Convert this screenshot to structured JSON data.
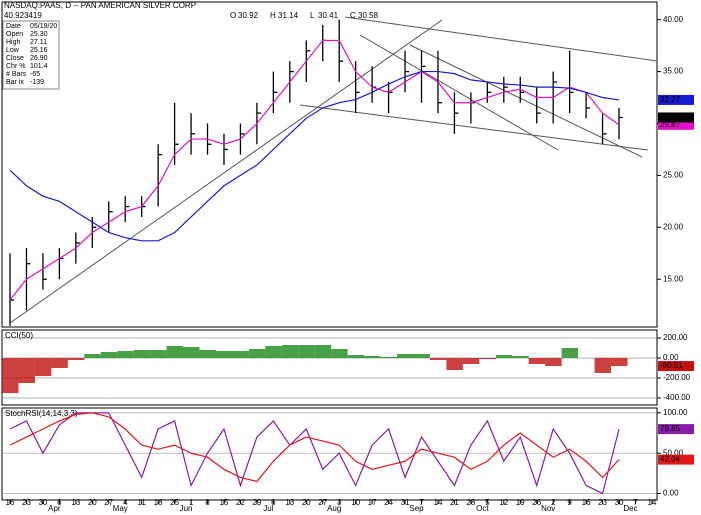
{
  "header": {
    "title": "NASDAQ:PAAS, D -- PAN AMERICAN SILVER CORP",
    "quote": [
      "O",
      "30.92",
      "H",
      "31.14",
      "L",
      "30.41",
      "C",
      "30.58"
    ],
    "cursor_value": "40.923419",
    "info": [
      [
        "Date",
        "05/19/20"
      ],
      [
        "Open",
        "25.30"
      ],
      [
        "High",
        "27.11"
      ],
      [
        "Low",
        "25.16"
      ],
      [
        "Close",
        "26.90"
      ],
      [
        "Chr %",
        "101.4"
      ],
      [
        "# Bars",
        "-65"
      ],
      [
        "Bar ix",
        "-139"
      ]
    ]
  },
  "chart_data": [
    {
      "type": "ohlc",
      "categories": [
        "16",
        "23",
        "30",
        "6",
        "13",
        "20",
        "27",
        "4",
        "11",
        "18",
        "25",
        "1",
        "8",
        "15",
        "22",
        "29",
        "6",
        "13",
        "20",
        "27",
        "3",
        "10",
        "17",
        "24",
        "31",
        "7",
        "14",
        "21",
        "28",
        "5",
        "12",
        "19",
        "26",
        "2",
        "9",
        "16",
        "23",
        "30",
        "7",
        "14"
      ],
      "month_labels": [
        null,
        null,
        null,
        "Apr",
        null,
        null,
        null,
        "May",
        null,
        null,
        null,
        "Jun",
        null,
        null,
        null,
        null,
        "Jul",
        null,
        null,
        null,
        "Aug",
        null,
        null,
        null,
        null,
        "Sep",
        null,
        null,
        null,
        "Oct",
        null,
        null,
        null,
        "Nov",
        null,
        null,
        null,
        null,
        "Dec",
        null
      ],
      "high": [
        17.5,
        18,
        17.5,
        18,
        19.5,
        21,
        22.5,
        23,
        23,
        28,
        32,
        31,
        30,
        29,
        30,
        32,
        35,
        36,
        38,
        39.5,
        40,
        36,
        35.5,
        34,
        37,
        37,
        37,
        33,
        33,
        34,
        34.5,
        34.5,
        33.5,
        35,
        37,
        33,
        31,
        31.5,
        null,
        null
      ],
      "low": [
        10.5,
        12,
        14,
        15,
        16.5,
        18,
        19.5,
        20.5,
        21,
        22,
        26,
        27,
        27,
        26,
        27,
        28,
        31,
        32,
        34,
        36,
        34,
        31,
        32,
        31,
        33,
        32,
        31,
        29,
        30,
        32,
        32,
        32,
        30,
        30,
        31,
        30.5,
        28,
        28.5,
        null,
        null
      ],
      "close": [
        13,
        16.5,
        15,
        17,
        18.5,
        20,
        21.5,
        22,
        22,
        27,
        28,
        29,
        28,
        27.5,
        29,
        31,
        33,
        35,
        37,
        38,
        36,
        33,
        33.5,
        33,
        35,
        35.5,
        32,
        31,
        32,
        33,
        33.5,
        33,
        31,
        34,
        33,
        31.5,
        29,
        30.58,
        null,
        null
      ],
      "color": "#000000",
      "series": [
        {
          "color": "#e010c8",
          "values": [
            13,
            15,
            16,
            17,
            18,
            19.5,
            20.5,
            21.5,
            22,
            24,
            27,
            28.5,
            28.5,
            28,
            28.5,
            30,
            32,
            34,
            36,
            38,
            38,
            35,
            33.5,
            33,
            34,
            35,
            34,
            32,
            32,
            32.5,
            33,
            33.3,
            32.5,
            32.5,
            33.5,
            33,
            31,
            29.87,
            null,
            null
          ]
        },
        {
          "color": "#1a1ad0",
          "values": [
            25.5,
            24,
            23,
            22.5,
            21.5,
            20.5,
            19.5,
            19,
            18.7,
            18.7,
            19.5,
            21,
            22.5,
            24,
            25,
            26,
            27.5,
            29,
            30.5,
            31.5,
            32,
            32.3,
            33,
            33.8,
            34.5,
            35,
            35,
            34.8,
            34.2,
            34,
            33.8,
            33.7,
            33.5,
            33.5,
            33.4,
            33,
            32.5,
            32.27,
            null,
            null
          ]
        }
      ],
      "ylim": [
        10.4,
        41.7
      ],
      "yticks": [
        {
          "value": 15,
          "label": "15.00"
        },
        {
          "value": 20,
          "label": "20.00"
        },
        {
          "value": 25,
          "label": "25.00"
        },
        {
          "value": 30,
          "label": "30.00"
        },
        {
          "value": 35,
          "label": "35.00"
        },
        {
          "value": 40,
          "label": "40.00"
        }
      ]
    },
    {
      "type": "bar",
      "title": "CCI(50)",
      "values": [
        -350,
        -250,
        -180,
        -100,
        -20,
        40,
        60,
        70,
        80,
        80,
        120,
        110,
        80,
        70,
        70,
        90,
        120,
        130,
        130,
        130,
        90,
        30,
        20,
        10,
        40,
        40,
        -20,
        -120,
        -60,
        -10,
        30,
        20,
        -60,
        -80,
        100,
        0,
        -150,
        -80.51,
        null,
        null
      ],
      "colors": {
        "positive": "#1a8a1a",
        "negative": "#c01010"
      },
      "ylim": [
        -470,
        280
      ],
      "yticks": [
        {
          "value": -400,
          "label": "-400.00"
        },
        {
          "value": -200,
          "label": "-200.00"
        },
        {
          "value": 0,
          "label": "0.00"
        },
        {
          "value": 200,
          "label": "200.00"
        }
      ]
    },
    {
      "type": "line",
      "title": "StochRSI(14,14,3,3)",
      "series": [
        {
          "color": "#8a1aa8",
          "values": [
            80,
            90,
            50,
            85,
            100,
            100,
            100,
            60,
            20,
            80,
            90,
            10,
            50,
            80,
            10,
            70,
            90,
            60,
            80,
            30,
            50,
            10,
            60,
            80,
            20,
            70,
            40,
            10,
            60,
            90,
            40,
            70,
            10,
            80,
            50,
            10,
            0,
            79.85,
            null,
            null
          ]
        },
        {
          "color": "#e01818",
          "values": [
            60,
            70,
            80,
            90,
            98,
            100,
            95,
            80,
            60,
            55,
            60,
            50,
            45,
            30,
            20,
            15,
            40,
            60,
            70,
            65,
            60,
            40,
            30,
            35,
            40,
            55,
            50,
            45,
            30,
            40,
            60,
            75,
            60,
            45,
            55,
            40,
            20,
            42.04,
            null,
            null
          ]
        }
      ],
      "ylim": [
        -8,
        106
      ],
      "yticks": [
        {
          "value": 0,
          "label": "0.00"
        },
        {
          "value": 50,
          "label": "50.00"
        },
        {
          "value": 100,
          "label": "100.00"
        }
      ]
    }
  ]
}
